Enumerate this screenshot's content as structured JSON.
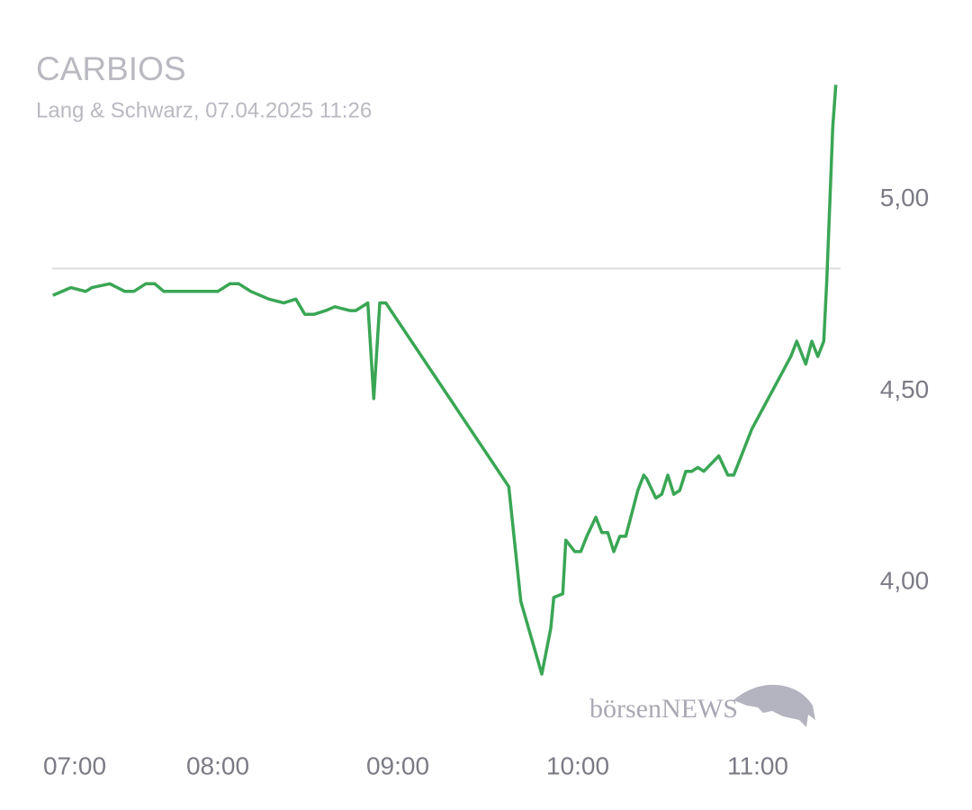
{
  "chart_data": {
    "type": "line",
    "title": "CARBIOS",
    "subtitle": "Lang & Schwarz, 07.04.2025 11:26",
    "watermark": "börsenNEWS",
    "x": [
      "07:05",
      "07:11",
      "07:16",
      "07:18",
      "07:24",
      "07:29",
      "07:32",
      "07:36",
      "07:39",
      "07:42",
      "07:45",
      "07:49",
      "07:55",
      "07:58",
      "08:00",
      "08:04",
      "08:07",
      "08:11",
      "08:17",
      "08:22",
      "08:26",
      "08:29",
      "08:32",
      "08:36",
      "08:39",
      "08:44",
      "08:46",
      "08:50",
      "08:52",
      "08:54",
      "08:56",
      "09:37",
      "09:41",
      "09:48",
      "09:51",
      "09:52",
      "09:55",
      "09:56",
      "09:59",
      "10:01",
      "10:03",
      "10:06",
      "10:08",
      "10:10",
      "10:12",
      "10:14",
      "10:16",
      "10:20",
      "10:22",
      "10:23",
      "10:26",
      "10:28",
      "10:30",
      "10:32",
      "10:34",
      "10:36",
      "10:38",
      "10:40",
      "10:42",
      "10:47",
      "10:50",
      "10:52",
      "10:54",
      "10:58",
      "11:11",
      "11:13",
      "11:16",
      "11:18",
      "11:20",
      "11:22",
      "11:23",
      "11:25",
      "11:26"
    ],
    "series": [
      {
        "color": "#3aa655",
        "values": [
          4.75,
          4.77,
          4.76,
          4.77,
          4.78,
          4.76,
          4.76,
          4.78,
          4.78,
          4.76,
          4.76,
          4.76,
          4.76,
          4.76,
          4.76,
          4.78,
          4.78,
          4.76,
          4.74,
          4.73,
          4.74,
          4.7,
          4.7,
          4.71,
          4.72,
          4.71,
          4.71,
          4.73,
          4.48,
          4.73,
          4.73,
          4.25,
          3.95,
          3.76,
          3.88,
          3.96,
          3.97,
          4.11,
          4.08,
          4.08,
          4.12,
          4.17,
          4.13,
          4.13,
          4.08,
          4.12,
          4.12,
          4.24,
          4.28,
          4.27,
          4.22,
          4.23,
          4.28,
          4.23,
          4.24,
          4.29,
          4.29,
          4.3,
          4.29,
          4.33,
          4.28,
          4.28,
          4.32,
          4.4,
          4.59,
          4.63,
          4.57,
          4.63,
          4.59,
          4.63,
          4.79,
          5.19,
          5.3
        ]
      }
    ],
    "reference_line": 4.82,
    "xlim": [
      "07:00",
      "11:30"
    ],
    "xticks": [
      "07:00",
      "08:00",
      "09:00",
      "10:00",
      "11:00"
    ],
    "ylim": [
      3.6,
      5.35
    ],
    "yticks": [
      {
        "value": 4,
        "label": "4,00"
      },
      {
        "value": 4.5,
        "label": "4,50"
      },
      {
        "value": 5,
        "label": "5,00"
      }
    ]
  }
}
